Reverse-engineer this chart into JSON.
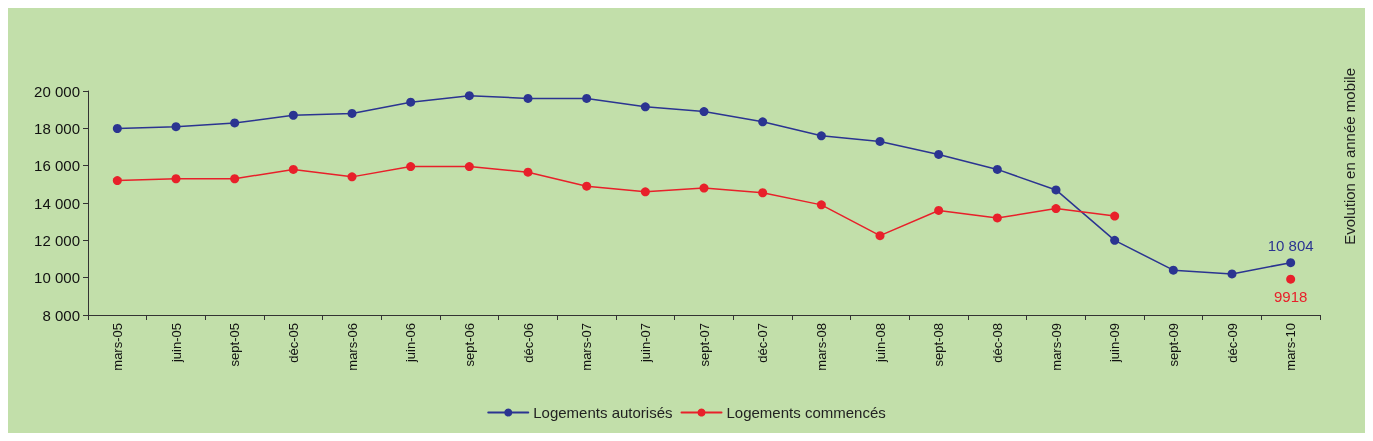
{
  "chart_data": {
    "type": "line",
    "categories": [
      "mars-05",
      "juin-05",
      "sept-05",
      "déc-05",
      "mars-06",
      "juin-06",
      "sept-06",
      "déc-06",
      "mars-07",
      "juin-07",
      "sept-07",
      "déc-07",
      "mars-08",
      "juin-08",
      "sept-08",
      "déc-08",
      "mars-09",
      "juin-09",
      "sept-09",
      "déc-09",
      "mars-10"
    ],
    "series": [
      {
        "name": "Logements autorisés",
        "color": "#2b3491",
        "values": [
          17990,
          18090,
          18290,
          18700,
          18800,
          19400,
          19750,
          19600,
          19600,
          19150,
          18900,
          18350,
          17600,
          17300,
          16600,
          15800,
          14700,
          12000,
          10400,
          10200,
          10804
        ],
        "value_labels": [
          null,
          null,
          null,
          null,
          null,
          null,
          null,
          null,
          null,
          null,
          null,
          null,
          null,
          null,
          null,
          null,
          null,
          null,
          null,
          null,
          "10 804"
        ]
      },
      {
        "name": "Logements commencés",
        "color": "#e8202a",
        "values": [
          15200,
          15300,
          15300,
          15800,
          15400,
          15950,
          15950,
          15650,
          14900,
          14600,
          14800,
          14550,
          13900,
          12250,
          13600,
          13200,
          13700,
          13300,
          null,
          null,
          9918
        ],
        "value_labels": [
          null,
          null,
          null,
          null,
          null,
          null,
          null,
          null,
          null,
          null,
          null,
          null,
          null,
          null,
          null,
          null,
          null,
          null,
          null,
          null,
          "9918"
        ]
      }
    ],
    "ylim": [
      8000,
      20000
    ],
    "yticks": [
      {
        "value": 8000,
        "label": "8 000"
      },
      {
        "value": 10000,
        "label": "10 000"
      },
      {
        "value": 12000,
        "label": "12 000"
      },
      {
        "value": 14000,
        "label": "14 000"
      },
      {
        "value": 16000,
        "label": "16 000"
      },
      {
        "value": 18000,
        "label": "18 000"
      },
      {
        "value": 20000,
        "label": "20 000"
      }
    ],
    "annotations": [
      "Evolution en année mobile"
    ],
    "legend": "bottom",
    "marker": "circle",
    "line_style": "solid",
    "grid": false
  }
}
